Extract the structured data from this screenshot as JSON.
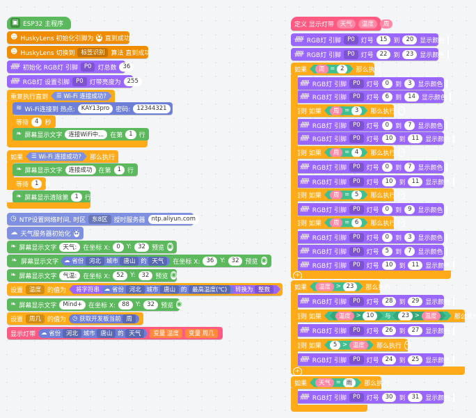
{
  "left": {
    "main_label": "ESP32 主程序",
    "husky_init": "HuskyLens 初始化引脚为",
    "husky_init_suffix": "直到成功",
    "husky_switch": "HuskyLens 切换到",
    "husky_algo": "标签识别",
    "husky_switch_suffix": "算法 直到成功",
    "rgb_init": "初始化 RGB灯 引脚",
    "pin": "P0",
    "rgb_total_label": "灯总数",
    "rgb_total": "36",
    "rgb_brightness_label": "RGB灯 设置引脚",
    "rgb_brightness_mid": "灯带亮度为",
    "rgb_brightness": "255",
    "repeat_until": "重复执行直到",
    "wifi_connected": "Wi-Fi 连接成功?",
    "wifi_connect": "Wi-Fi连接到 热点:",
    "ssid": "KAY13pro",
    "password_label": "密码:",
    "password": "12344321",
    "wait": "等待",
    "wait_4": "4",
    "seconds": "秒",
    "screen_text": "屏幕显示文字",
    "msg_connecting": "连接WiFi中...",
    "at_row": "在第",
    "row": "行",
    "row_1": "1",
    "if": "如果",
    "then": "那么执行",
    "msg_connected": "连接成功",
    "wait_1": "1",
    "screen_clear": "屏幕显示清除第",
    "ntp": "NTP设置网络时间, 时区",
    "ntp_zone": "东8区",
    "ntp_server_label": "授时服务器",
    "ntp_server": "ntp.aliyun.com",
    "weather_init": "天气服务器初始化",
    "at_x": "在坐标 X:",
    "y_label": "Y:",
    "preview": "预览",
    "txt_weather": "天气:",
    "x_0": "0",
    "y_32": "32",
    "province_label": "省份",
    "province": "河北",
    "city_label": "城市",
    "city": "唐山",
    "of": "的",
    "weather_field": "天气",
    "x_36": "36",
    "txt_temp": "气温:",
    "x_52": "52",
    "set": "设置",
    "var_temp": "温度",
    "value_is": "的值为",
    "round_text": "将字符串",
    "max_temp": "最高温度(℃)",
    "convert": "转换为",
    "int_type": "整数",
    "txt_mind": "Mind+",
    "x_88": "88",
    "var_week": "周几",
    "get_week": "获取开发板当前",
    "week_field": "周",
    "show_strip": "显示灯带",
    "var_label": "变量",
    "var_week_short": "周几"
  },
  "right": {
    "define": "定义 显示灯带",
    "param_weather": "天气",
    "param_temp": "温度",
    "param_week": "周",
    "rgb_pin": "RGB灯 引脚",
    "pin": "P0",
    "lamp": "灯号",
    "to": "到",
    "show_color": "显示颜色",
    "if": "如果",
    "elif": "否则 如果",
    "then": "那么执行",
    "else": "否则",
    "and": "与",
    "week": "周",
    "temp": "温度",
    "weather": "天气",
    "rain": "雨",
    "gt": ">",
    "eq": "=",
    "r1": [
      "15",
      "20"
    ],
    "r2": [
      "22",
      "23"
    ],
    "c2": "2",
    "r3": [
      "0",
      "3"
    ],
    "r4": [
      "6",
      "14"
    ],
    "c3": "3",
    "r5": [
      "0",
      "7"
    ],
    "r6": [
      "10",
      "11"
    ],
    "c4": "4",
    "r7": [
      "0",
      "7"
    ],
    "r8": [
      "10",
      "11"
    ],
    "c5": "5",
    "r9": [
      "0",
      "9"
    ],
    "c6": "6",
    "r10": [
      "0",
      "3"
    ],
    "r11": [
      "5",
      "7"
    ],
    "r12": [
      "10",
      "11"
    ],
    "t23": "23",
    "r13": [
      "28",
      "29"
    ],
    "t10": "10",
    "t23b": "23",
    "r14": [
      "26",
      "27"
    ],
    "t5": "5",
    "r15": [
      "24",
      "25"
    ],
    "r16": [
      "30",
      "31"
    ]
  },
  "colors": {
    "control": "#ffab19",
    "rgb": "#9966ff",
    "screen": "#5cb85c",
    "define": "#ff5a82",
    "huskylens": "#f08c00",
    "wifi": "#6d7fd9"
  }
}
